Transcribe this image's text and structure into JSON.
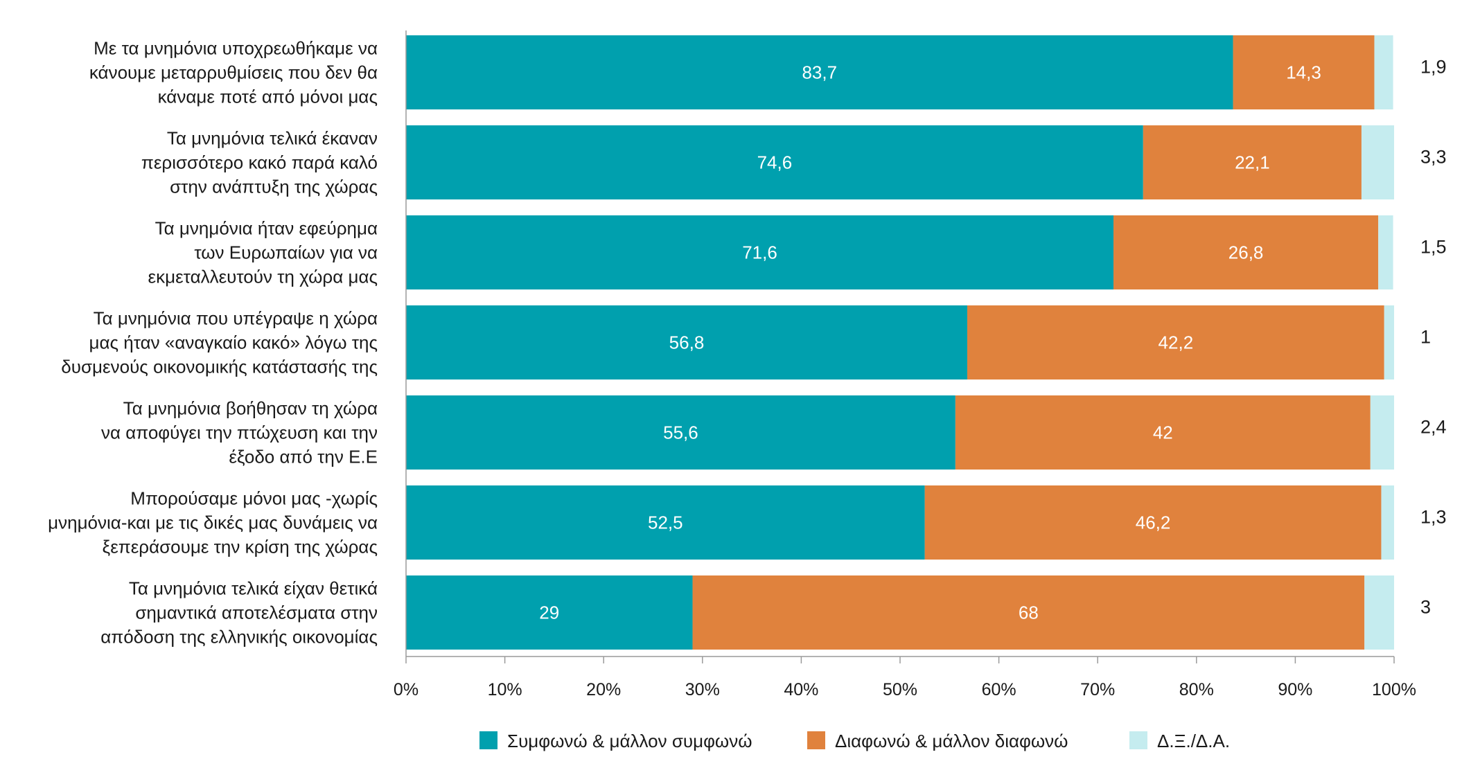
{
  "chart_data": {
    "type": "bar",
    "orientation": "horizontal",
    "stacked": true,
    "categories": [
      [
        "Με τα μνημόνια υποχρεωθήκαμε να",
        "κάνουμε μεταρρυθμίσεις που δεν θα",
        "κάναμε ποτέ από μόνοι μας"
      ],
      [
        "Τα μνημόνια τελικά έκαναν",
        "περισσότερο κακό παρά καλό",
        "στην ανάπτυξη της χώρας"
      ],
      [
        "Τα μνημόνια ήταν εφεύρημα",
        "των Ευρωπαίων για να",
        "εκμεταλλευτούν τη χώρα μας"
      ],
      [
        "Τα μνημόνια που υπέγραψε η χώρα",
        "μας ήταν «αναγκαίο κακό» λόγω της",
        "δυσμενούς οικονομικής κατάστασής της"
      ],
      [
        "Τα μνημόνια βοήθησαν τη χώρα",
        "να αποφύγει την πτώχευση και την",
        "έξοδο από την Ε.Ε"
      ],
      [
        "Μπορούσαμε μόνοι μας -χωρίς",
        "μνημόνια-και με τις δικές μας δυνάμεις να",
        "ξεπεράσουμε την κρίση της χώρας"
      ],
      [
        "Τα μνημόνια τελικά είχαν θετικά",
        "σημαντικά αποτελέσματα στην",
        "απόδοση της ελληνικής οικονομίας"
      ]
    ],
    "series": [
      {
        "name": "Συμφωνώ & μάλλον συμφωνώ",
        "color": "#00a0ae",
        "values": [
          83.7,
          74.6,
          71.6,
          56.8,
          55.6,
          52.5,
          29
        ],
        "labels": [
          "83,7",
          "74,6",
          "71,6",
          "56,8",
          "55,6",
          "52,5",
          "29"
        ]
      },
      {
        "name": "Διαφωνώ & μάλλον διαφωνώ",
        "color": "#e0823d",
        "values": [
          14.3,
          22.1,
          26.8,
          42.2,
          42,
          46.2,
          68
        ],
        "labels": [
          "14,3",
          "22,1",
          "26,8",
          "42,2",
          "42",
          "46,2",
          "68"
        ]
      },
      {
        "name": "Δ.Ξ./Δ.Α.",
        "color": "#c5ecef",
        "values": [
          1.9,
          3.3,
          1.5,
          1,
          2.4,
          1.3,
          3
        ],
        "labels": [
          "1,9",
          "3,3",
          "1,5",
          "1",
          "2,4",
          "1,3",
          "3"
        ]
      }
    ],
    "xlim": [
      0,
      100
    ],
    "xticks": [
      "0%",
      "10%",
      "20%",
      "30%",
      "40%",
      "50%",
      "60%",
      "70%",
      "80%",
      "90%",
      "100%"
    ],
    "grid": false,
    "legend": "bottom"
  }
}
